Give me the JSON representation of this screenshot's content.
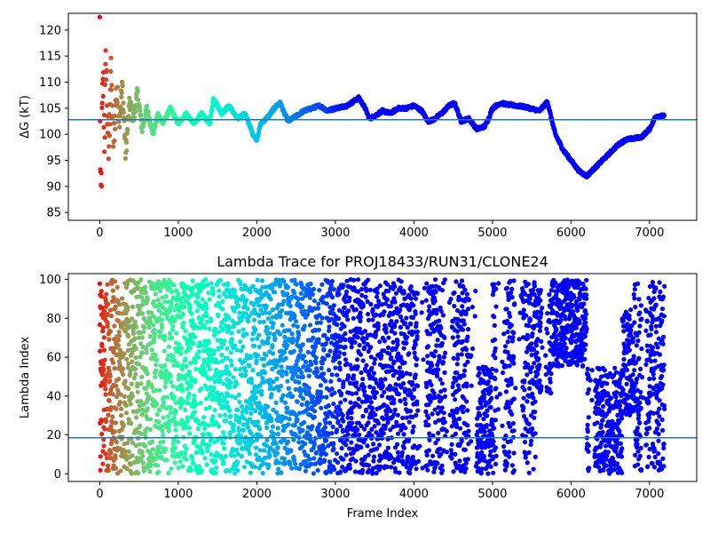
{
  "chart_data": [
    {
      "type": "scatter",
      "title": "",
      "xlabel": "",
      "ylabel": "ΔG (kT)",
      "xlim": [
        -400,
        7600
      ],
      "ylim": [
        83.5,
        123.2
      ],
      "xticks": [
        0,
        1000,
        2000,
        3000,
        4000,
        5000,
        6000,
        7000
      ],
      "yticks": [
        85,
        90,
        95,
        100,
        105,
        110,
        115,
        120
      ],
      "hline": 102.8,
      "hline_color": "#1f77b4",
      "colormap": "rainbow-reversed",
      "x_max": 7190,
      "anchors": [
        [
          0,
          120
        ],
        [
          10,
          84
        ],
        [
          20,
          90
        ],
        [
          30,
          102
        ],
        [
          45,
          110
        ],
        [
          60,
          100
        ],
        [
          80,
          115
        ],
        [
          110,
          95
        ],
        [
          140,
          112
        ],
        [
          175,
          98
        ],
        [
          210,
          108
        ],
        [
          250,
          104
        ],
        [
          290,
          109
        ],
        [
          330,
          96
        ],
        [
          380,
          106
        ],
        [
          430,
          103
        ],
        [
          480,
          108
        ],
        [
          540,
          101
        ],
        [
          600,
          105
        ],
        [
          680,
          100
        ],
        [
          740,
          104
        ],
        [
          800,
          102
        ],
        [
          900,
          105
        ],
        [
          1000,
          102
        ],
        [
          1100,
          104
        ],
        [
          1200,
          102
        ],
        [
          1300,
          104
        ],
        [
          1400,
          102
        ],
        [
          1450,
          107
        ],
        [
          1550,
          104
        ],
        [
          1650,
          105.5
        ],
        [
          1750,
          103
        ],
        [
          1850,
          104
        ],
        [
          1950,
          100
        ],
        [
          2000,
          99
        ],
        [
          2050,
          102
        ],
        [
          2150,
          103.5
        ],
        [
          2250,
          105.5
        ],
        [
          2300,
          106
        ],
        [
          2350,
          104
        ],
        [
          2400,
          102.5
        ],
        [
          2500,
          103.5
        ],
        [
          2600,
          104.5
        ],
        [
          2700,
          105
        ],
        [
          2800,
          105.5
        ],
        [
          2900,
          104.5
        ],
        [
          3000,
          105
        ],
        [
          3150,
          105.5
        ],
        [
          3250,
          106.5
        ],
        [
          3300,
          107
        ],
        [
          3380,
          105
        ],
        [
          3430,
          103
        ],
        [
          3500,
          103.5
        ],
        [
          3600,
          104.5
        ],
        [
          3700,
          104
        ],
        [
          3800,
          105
        ],
        [
          3900,
          105
        ],
        [
          4000,
          105.5
        ],
        [
          4100,
          104.5
        ],
        [
          4180,
          102.5
        ],
        [
          4250,
          102.8
        ],
        [
          4350,
          104
        ],
        [
          4450,
          105.5
        ],
        [
          4520,
          106
        ],
        [
          4600,
          102.5
        ],
        [
          4700,
          103
        ],
        [
          4800,
          101
        ],
        [
          4900,
          101.5
        ],
        [
          4950,
          103
        ],
        [
          5000,
          105
        ],
        [
          5100,
          106
        ],
        [
          5200,
          105.7
        ],
        [
          5400,
          105.3
        ],
        [
          5600,
          104.5
        ],
        [
          5700,
          106.3
        ],
        [
          5750,
          103
        ],
        [
          5800,
          100
        ],
        [
          5900,
          97
        ],
        [
          6000,
          95
        ],
        [
          6100,
          93
        ],
        [
          6200,
          92
        ],
        [
          6300,
          93.5
        ],
        [
          6400,
          95
        ],
        [
          6500,
          96.5
        ],
        [
          6600,
          98
        ],
        [
          6700,
          99
        ],
        [
          6800,
          99.2
        ],
        [
          6900,
          99.5
        ],
        [
          7000,
          101
        ],
        [
          7080,
          103.5
        ],
        [
          7190,
          103.5
        ]
      ]
    },
    {
      "type": "scatter",
      "title": "Lambda Trace for PROJ18433/RUN31/CLONE24",
      "xlabel": "Frame Index",
      "ylabel": "Lambda Index",
      "xlim": [
        -400,
        7600
      ],
      "ylim": [
        -4,
        103
      ],
      "xticks": [
        0,
        1000,
        2000,
        3000,
        4000,
        5000,
        6000,
        7000
      ],
      "yticks": [
        0,
        20,
        40,
        60,
        80,
        100
      ],
      "hline": 18.5,
      "hline_color": "#1f77b4",
      "colormap": "rainbow-reversed",
      "x_max": 7190,
      "point_count": 5200
    }
  ]
}
